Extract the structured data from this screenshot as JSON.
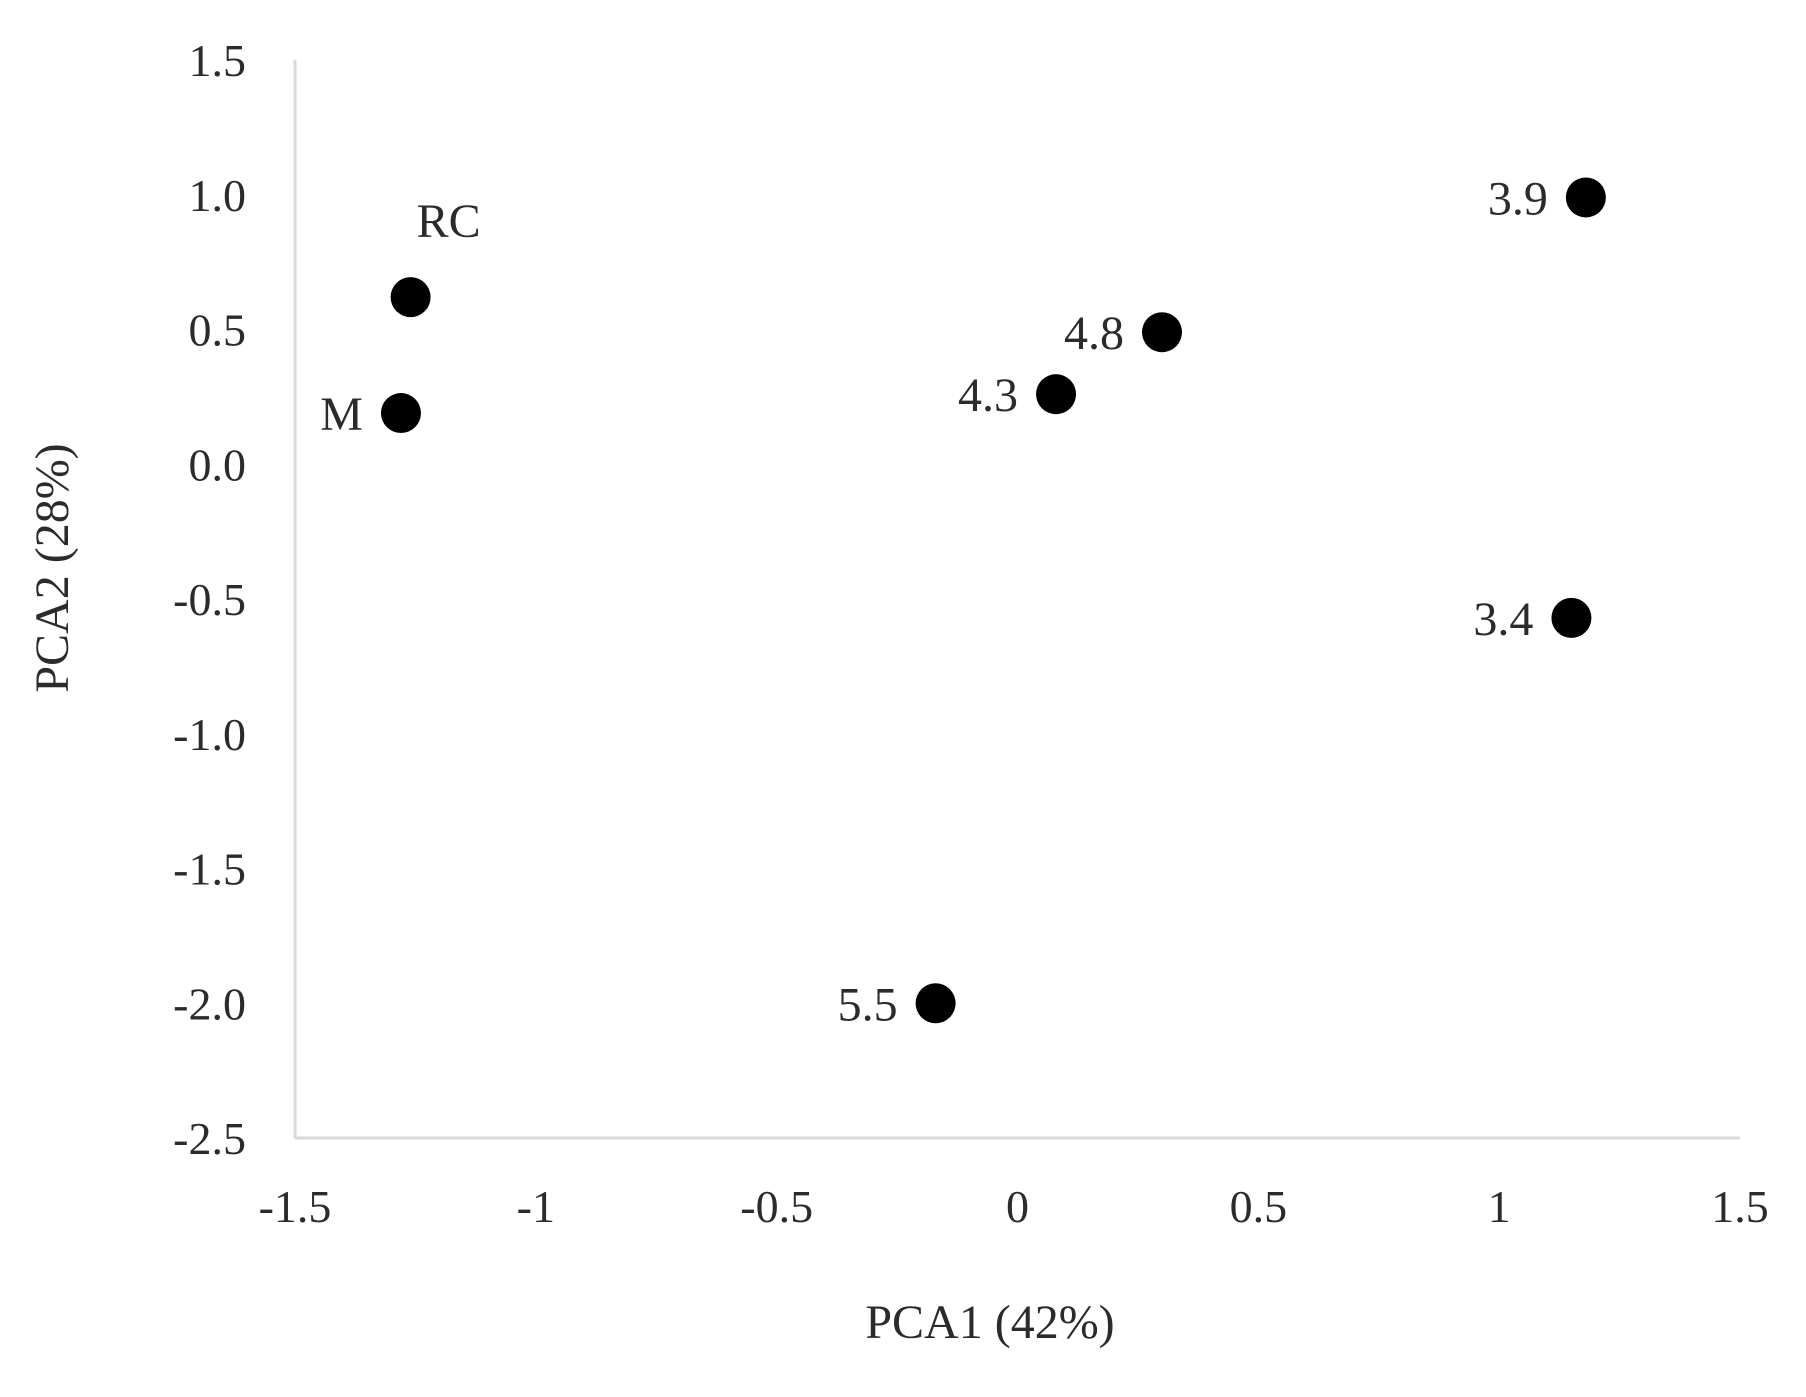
{
  "chart_data": {
    "type": "scatter",
    "title": "",
    "xlabel": "PCA1 (42%)",
    "ylabel": "PCA2 (28%)",
    "xlim": [
      -1.5,
      1.5
    ],
    "ylim": [
      -2.5,
      1.5
    ],
    "x_ticks": [
      -1.5,
      -1,
      -0.5,
      0,
      0.5,
      1,
      1.5
    ],
    "x_tick_labels": [
      "-1.5",
      "-1",
      "-0.5",
      "0",
      "0.5",
      "1",
      "1.5"
    ],
    "y_ticks": [
      1.5,
      1.0,
      0.5,
      0.0,
      -0.5,
      -1.0,
      -1.5,
      -2.0,
      -2.5
    ],
    "y_tick_labels": [
      "1.5",
      "1.0",
      "0.5",
      "0.0",
      "-0.5",
      "-1.0",
      "-1.5",
      "-2.0",
      "-2.5"
    ],
    "grid": false,
    "legend": "none",
    "marker_color": "#000000",
    "axis_color": "#d9d9d9",
    "points": [
      {
        "label": "RC",
        "x": -1.26,
        "y": 0.62,
        "label_pos": "above-right"
      },
      {
        "label": "M",
        "x": -1.28,
        "y": 0.19,
        "label_pos": "left"
      },
      {
        "label": "4.8",
        "x": 0.3,
        "y": 0.49,
        "label_pos": "left"
      },
      {
        "label": "4.3",
        "x": 0.08,
        "y": 0.26,
        "label_pos": "left"
      },
      {
        "label": "3.9",
        "x": 1.18,
        "y": 0.99,
        "label_pos": "left"
      },
      {
        "label": "3.4",
        "x": 1.15,
        "y": -0.57,
        "label_pos": "left"
      },
      {
        "label": "5.5",
        "x": -0.17,
        "y": -2.0,
        "label_pos": "left"
      }
    ]
  }
}
